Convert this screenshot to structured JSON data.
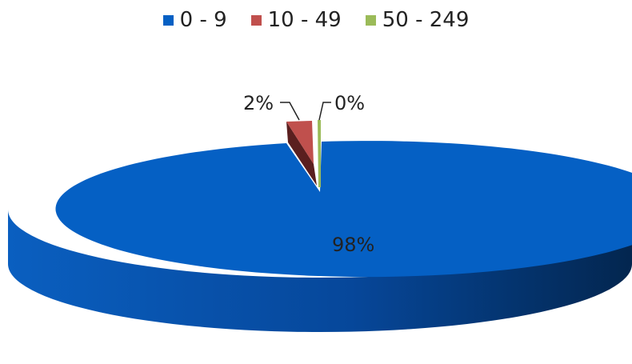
{
  "chart_data": {
    "type": "pie",
    "legend_position": "top",
    "labels": [
      "0 - 9",
      "10 - 49",
      "50 - 249"
    ],
    "values": [
      98,
      2,
      0
    ],
    "value_labels": [
      "98%",
      "2%",
      "0%"
    ],
    "colors": [
      "#0560C4",
      "#C0504D",
      "#9BBB59"
    ],
    "view": "3d"
  }
}
